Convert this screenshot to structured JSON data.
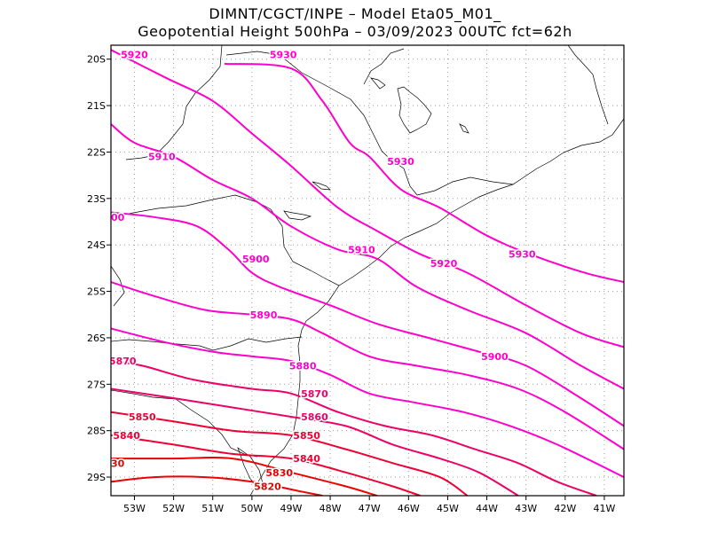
{
  "header": {
    "line1": "DIMNT/CGCT/INPE –  Model Eta05_M01_",
    "line2": "Geopotential Height 500hPa –  03/09/2023 00UTC fct=62h"
  },
  "map": {
    "lon_range": [
      -53.6,
      -40.5
    ],
    "lat_range": [
      -29.4,
      -19.7
    ],
    "x_ticks": [
      {
        "value": -53,
        "label": "53W"
      },
      {
        "value": -52,
        "label": "52W"
      },
      {
        "value": -51,
        "label": "51W"
      },
      {
        "value": -50,
        "label": "50W"
      },
      {
        "value": -49,
        "label": "49W"
      },
      {
        "value": -48,
        "label": "48W"
      },
      {
        "value": -47,
        "label": "47W"
      },
      {
        "value": -46,
        "label": "46W"
      },
      {
        "value": -45,
        "label": "45W"
      },
      {
        "value": -44,
        "label": "44W"
      },
      {
        "value": -43,
        "label": "43W"
      },
      {
        "value": -42,
        "label": "42W"
      },
      {
        "value": -41,
        "label": "41W"
      }
    ],
    "y_ticks": [
      {
        "value": -20,
        "label": "20S"
      },
      {
        "value": -21,
        "label": "21S"
      },
      {
        "value": -22,
        "label": "22S"
      },
      {
        "value": -23,
        "label": "23S"
      },
      {
        "value": -24,
        "label": "24S"
      },
      {
        "value": -25,
        "label": "25S"
      },
      {
        "value": -26,
        "label": "26S"
      },
      {
        "value": -27,
        "label": "27S"
      },
      {
        "value": -28,
        "label": "28S"
      },
      {
        "value": -29,
        "label": "29S"
      }
    ],
    "grid": "dotted"
  },
  "contours": [
    {
      "level": "5930",
      "color": "#ff00cc",
      "points": [
        [
          -50.7,
          -20.1
        ],
        [
          -49.0,
          -20.2
        ],
        [
          -48.2,
          -20.9
        ],
        [
          -47.5,
          -21.8
        ],
        [
          -47.0,
          -22.1
        ],
        [
          -46.2,
          -22.8
        ],
        [
          -45.2,
          -23.2
        ],
        [
          -44.0,
          -23.8
        ],
        [
          -42.9,
          -24.2
        ],
        [
          -41.5,
          -24.6
        ],
        [
          -40.5,
          -24.8
        ]
      ],
      "labels": [
        [
          -49.2,
          -19.9
        ],
        [
          -46.2,
          -22.2
        ],
        [
          -43.1,
          -24.2
        ]
      ]
    },
    {
      "level": "5920",
      "color": "#ff00cc",
      "points": [
        [
          -53.6,
          -19.8
        ],
        [
          -52.2,
          -20.4
        ],
        [
          -51.0,
          -20.9
        ],
        [
          -50.0,
          -21.6
        ],
        [
          -49.0,
          -22.3
        ],
        [
          -47.8,
          -23.2
        ],
        [
          -46.8,
          -23.7
        ],
        [
          -45.7,
          -24.2
        ],
        [
          -44.5,
          -24.6
        ],
        [
          -43.0,
          -25.3
        ],
        [
          -41.6,
          -25.9
        ],
        [
          -40.5,
          -26.2
        ]
      ],
      "labels": [
        [
          -53.0,
          -19.9
        ],
        [
          -45.1,
          -24.4
        ]
      ]
    },
    {
      "level": "5910",
      "color": "#ff00cc",
      "points": [
        [
          -53.6,
          -21.4
        ],
        [
          -53.0,
          -21.8
        ],
        [
          -52.0,
          -22.1
        ],
        [
          -51.0,
          -22.6
        ],
        [
          -50.0,
          -23.0
        ],
        [
          -49.0,
          -23.6
        ],
        [
          -47.8,
          -24.1
        ],
        [
          -46.8,
          -24.3
        ],
        [
          -45.8,
          -24.9
        ],
        [
          -44.5,
          -25.4
        ],
        [
          -43.0,
          -25.9
        ],
        [
          -41.6,
          -26.6
        ],
        [
          -40.5,
          -27.1
        ]
      ],
      "labels": [
        [
          -52.3,
          -22.1
        ],
        [
          -47.2,
          -24.1
        ]
      ]
    },
    {
      "level": "5900",
      "color": "#ff00cc",
      "points": [
        [
          -53.6,
          -23.3
        ],
        [
          -52.5,
          -23.4
        ],
        [
          -51.4,
          -23.6
        ],
        [
          -50.6,
          -24.1
        ],
        [
          -50.0,
          -24.6
        ],
        [
          -49.3,
          -24.9
        ],
        [
          -48.0,
          -25.3
        ],
        [
          -46.8,
          -25.7
        ],
        [
          -45.5,
          -26.0
        ],
        [
          -44.2,
          -26.3
        ],
        [
          -43.0,
          -26.6
        ],
        [
          -41.6,
          -27.3
        ],
        [
          -40.5,
          -27.9
        ]
      ],
      "labels": [
        [
          -53.6,
          -23.4
        ],
        [
          -49.9,
          -24.3
        ],
        [
          -43.8,
          -26.4
        ]
      ]
    },
    {
      "level": "5890",
      "color": "#ff00cc",
      "points": [
        [
          -53.6,
          -24.8
        ],
        [
          -52.5,
          -25.1
        ],
        [
          -51.2,
          -25.4
        ],
        [
          -50.0,
          -25.5
        ],
        [
          -49.0,
          -25.6
        ],
        [
          -48.2,
          -25.9
        ],
        [
          -47.0,
          -26.4
        ],
        [
          -45.8,
          -26.6
        ],
        [
          -44.5,
          -26.8
        ],
        [
          -43.2,
          -27.1
        ],
        [
          -42.0,
          -27.6
        ],
        [
          -40.5,
          -28.4
        ]
      ],
      "labels": [
        [
          -49.7,
          -25.5
        ]
      ]
    },
    {
      "level": "5880",
      "color": "#ff00cc",
      "points": [
        [
          -53.6,
          -25.8
        ],
        [
          -52.2,
          -26.1
        ],
        [
          -51.0,
          -26.3
        ],
        [
          -50.0,
          -26.4
        ],
        [
          -49.0,
          -26.5
        ],
        [
          -48.0,
          -26.8
        ],
        [
          -47.0,
          -27.2
        ],
        [
          -45.8,
          -27.4
        ],
        [
          -44.6,
          -27.6
        ],
        [
          -43.4,
          -27.9
        ],
        [
          -42.2,
          -28.3
        ],
        [
          -40.5,
          -29.0
        ]
      ],
      "labels": [
        [
          -48.7,
          -26.6
        ]
      ]
    },
    {
      "level": "5870",
      "color": "#ee0066",
      "points": [
        [
          -53.6,
          -26.5
        ],
        [
          -52.8,
          -26.6
        ],
        [
          -51.5,
          -26.9
        ],
        [
          -50.0,
          -27.1
        ],
        [
          -49.0,
          -27.2
        ],
        [
          -47.8,
          -27.6
        ],
        [
          -46.6,
          -27.9
        ],
        [
          -45.4,
          -28.1
        ],
        [
          -44.3,
          -28.4
        ],
        [
          -43.2,
          -28.7
        ],
        [
          -42.2,
          -29.1
        ],
        [
          -41.2,
          -29.4
        ]
      ],
      "labels": [
        [
          -53.3,
          -26.5
        ],
        [
          -48.4,
          -27.2
        ]
      ]
    },
    {
      "level": "5860",
      "color": "#ee0066",
      "points": [
        [
          -53.6,
          -27.1
        ],
        [
          -52.0,
          -27.3
        ],
        [
          -50.5,
          -27.5
        ],
        [
          -49.0,
          -27.7
        ],
        [
          -47.6,
          -27.9
        ],
        [
          -46.4,
          -28.3
        ],
        [
          -45.2,
          -28.6
        ],
        [
          -44.2,
          -28.9
        ],
        [
          -43.2,
          -29.4
        ]
      ],
      "labels": [
        [
          -48.4,
          -27.7
        ]
      ]
    },
    {
      "level": "5850",
      "color": "#ee0033",
      "points": [
        [
          -53.6,
          -27.6
        ],
        [
          -52.0,
          -27.8
        ],
        [
          -50.5,
          -28.0
        ],
        [
          -49.0,
          -28.1
        ],
        [
          -47.6,
          -28.4
        ],
        [
          -46.4,
          -28.7
        ],
        [
          -45.2,
          -29.0
        ],
        [
          -44.5,
          -29.4
        ]
      ],
      "labels": [
        [
          -52.8,
          -27.7
        ],
        [
          -48.6,
          -28.1
        ]
      ]
    },
    {
      "level": "5840",
      "color": "#ee0033",
      "points": [
        [
          -53.6,
          -28.1
        ],
        [
          -52.0,
          -28.3
        ],
        [
          -50.5,
          -28.5
        ],
        [
          -49.0,
          -28.6
        ],
        [
          -47.6,
          -28.9
        ],
        [
          -46.4,
          -29.2
        ],
        [
          -45.7,
          -29.4
        ]
      ],
      "labels": [
        [
          -53.2,
          -28.1
        ],
        [
          -48.6,
          -28.6
        ]
      ]
    },
    {
      "level": "5830",
      "color": "#ee0000",
      "points": [
        [
          -53.6,
          -28.6
        ],
        [
          -52.0,
          -28.6
        ],
        [
          -50.5,
          -28.6
        ],
        [
          -49.0,
          -28.9
        ],
        [
          -47.6,
          -29.2
        ],
        [
          -46.8,
          -29.4
        ]
      ],
      "labels": [
        [
          -53.6,
          -28.7
        ],
        [
          -49.3,
          -28.9
        ]
      ]
    },
    {
      "level": "5820",
      "color": "#ee0000",
      "points": [
        [
          -53.6,
          -29.1
        ],
        [
          -52.5,
          -29.0
        ],
        [
          -51.2,
          -29.0
        ],
        [
          -50.0,
          -29.1
        ],
        [
          -48.8,
          -29.3
        ],
        [
          -48.2,
          -29.4
        ]
      ],
      "labels": [
        [
          -49.6,
          -29.2
        ]
      ]
    }
  ]
}
